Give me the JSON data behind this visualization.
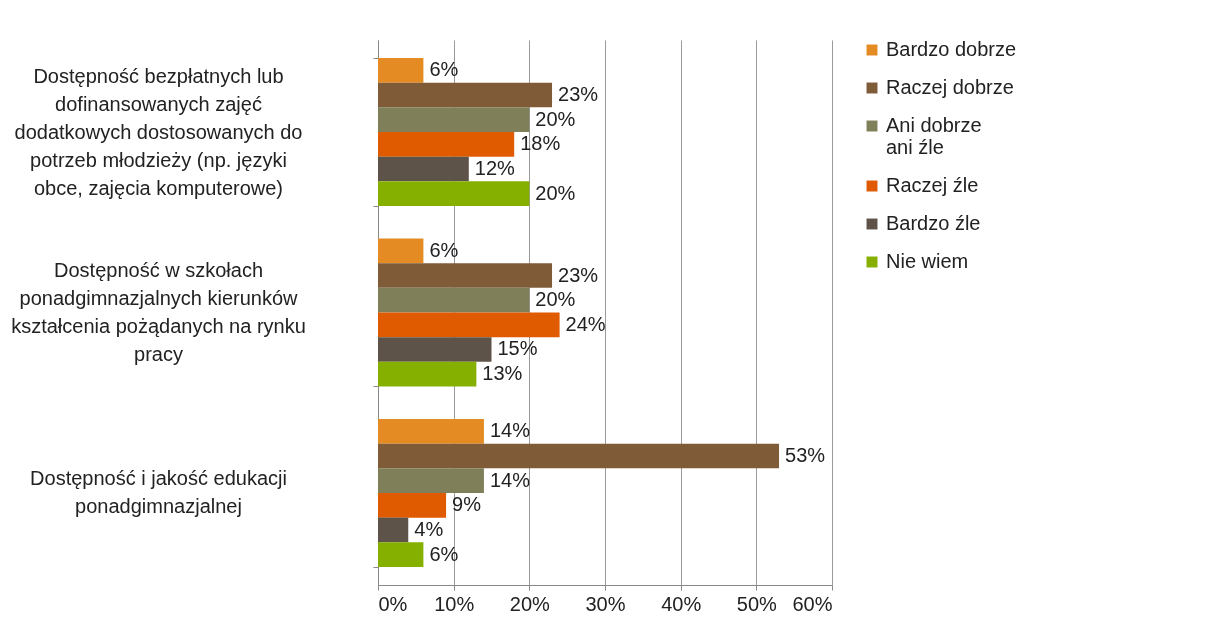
{
  "chart_data": {
    "type": "bar",
    "orientation": "horizontal",
    "categories": [
      "Dostępność bezpłatnych lub dofinansowanych zajęć dodatkowych dostosowanych do potrzeb młodzieży  (np. języki obce, zajęcia komputerowe)",
      "Dostępność w szkołach ponadgimnazjalnych kierunków kształcenia pożądanych na rynku pracy",
      "Dostępność i jakość edukacji ponadgimnazjalnej"
    ],
    "series": [
      {
        "name": "Bardzo dobrze",
        "color": "#e48c23",
        "values": [
          6,
          6,
          14
        ],
        "value_labels": [
          "6%",
          "6%",
          "14%"
        ]
      },
      {
        "name": "Raczej dobrze",
        "color": "#7f5b38",
        "values": [
          23,
          23,
          53
        ],
        "value_labels": [
          "23%",
          "23%",
          "53%"
        ]
      },
      {
        "name": "Ani dobrze ani źle",
        "color": "#7f8059",
        "values": [
          20,
          20,
          14
        ],
        "value_labels": [
          "20%",
          "20%",
          "14%"
        ]
      },
      {
        "name": "Raczej źle",
        "color": "#e05a00",
        "values": [
          18,
          24,
          9
        ],
        "value_labels": [
          "18%",
          "24%",
          "9%"
        ]
      },
      {
        "name": "Bardzo źle",
        "color": "#5e5349",
        "values": [
          12,
          15,
          4
        ],
        "value_labels": [
          "12%",
          "15%",
          "4%"
        ]
      },
      {
        "name": "Nie wiem",
        "color": "#86b000",
        "values": [
          20,
          13,
          6
        ],
        "value_labels": [
          "20%",
          "13%",
          "6%"
        ]
      }
    ],
    "xlim": [
      0,
      60
    ],
    "xticks": [
      {
        "value": 0,
        "label": "0%"
      },
      {
        "value": 10,
        "label": "10%"
      },
      {
        "value": 20,
        "label": "20%"
      },
      {
        "value": 30,
        "label": "30%"
      },
      {
        "value": 40,
        "label": "40%"
      },
      {
        "value": 50,
        "label": "50%"
      },
      {
        "value": 60,
        "label": "60%"
      }
    ],
    "grid": "x",
    "legend": "right"
  }
}
